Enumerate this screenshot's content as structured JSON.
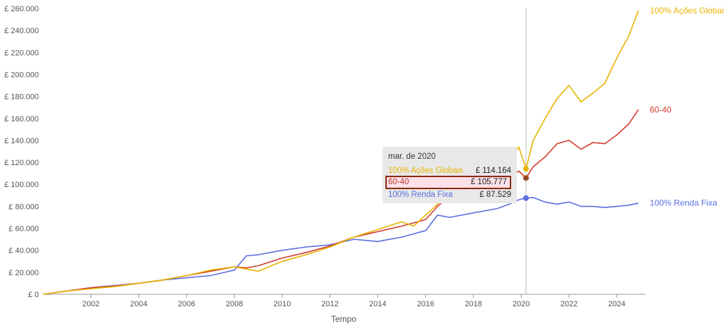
{
  "chart_data": {
    "type": "line",
    "title": "",
    "xlabel": "Tempo",
    "ylabel": "",
    "xlim": [
      2000.0,
      2025.2
    ],
    "ylim": [
      0,
      260000
    ],
    "grid": false,
    "x_ticks": [
      "2002",
      "2004",
      "2006",
      "2008",
      "2010",
      "2012",
      "2014",
      "2016",
      "2018",
      "2020",
      "2022",
      "2024"
    ],
    "y_ticks": [
      "£ 0",
      "£ 20.000",
      "£ 40.000",
      "£ 60.000",
      "£ 80.000",
      "£ 100.000",
      "£ 120.000",
      "£ 140.000",
      "£ 160.000",
      "£ 180.000",
      "£ 200.000",
      "£ 220.000",
      "£ 240.000",
      "£ 260.000"
    ],
    "series": [
      {
        "name": "100% Ações Globais",
        "color": "#e8b400",
        "x": [
          2000.0,
          2001.0,
          2002.0,
          2003.0,
          2004.0,
          2005.0,
          2006.0,
          2007.0,
          2008.0,
          2008.5,
          2009.0,
          2010.0,
          2011.0,
          2012.0,
          2013.0,
          2014.0,
          2015.0,
          2015.5,
          2016.0,
          2016.5,
          2017.0,
          2018.0,
          2018.5,
          2019.0,
          2019.5,
          2019.9,
          2020.2,
          2020.5,
          2021.0,
          2021.5,
          2022.0,
          2022.5,
          2023.0,
          2023.5,
          2024.0,
          2024.5,
          2024.9
        ],
        "y": [
          0,
          3000,
          5000,
          7000,
          10000,
          13000,
          17000,
          22000,
          25000,
          23000,
          21000,
          30000,
          36000,
          43000,
          52000,
          59000,
          66000,
          62000,
          72000,
          82000,
          98000,
          118000,
          113000,
          125000,
          122000,
          134000,
          114164,
          140000,
          160000,
          178000,
          190000,
          175000,
          183000,
          192000,
          215000,
          235000,
          258000
        ]
      },
      {
        "name": "60-40",
        "color": "#d13b2e",
        "x": [
          2000.0,
          2001.0,
          2002.0,
          2003.0,
          2004.0,
          2005.0,
          2006.0,
          2007.0,
          2008.0,
          2008.5,
          2009.0,
          2010.0,
          2011.0,
          2012.0,
          2013.0,
          2014.0,
          2015.0,
          2016.0,
          2016.5,
          2017.0,
          2018.0,
          2019.0,
          2019.5,
          2019.9,
          2020.2,
          2020.5,
          2021.0,
          2021.5,
          2022.0,
          2022.5,
          2023.0,
          2023.5,
          2024.0,
          2024.5,
          2024.9
        ],
        "y": [
          0,
          3000,
          6000,
          7500,
          10000,
          13000,
          17000,
          21000,
          25000,
          24000,
          26000,
          33000,
          38000,
          44000,
          52000,
          57000,
          62000,
          68000,
          80000,
          90000,
          100000,
          106000,
          108000,
          112000,
          105777,
          116000,
          125000,
          137000,
          140000,
          132000,
          138000,
          137000,
          145000,
          155000,
          168000
        ]
      },
      {
        "name": "100% Renda Fixa",
        "color": "#5a6fe0",
        "x": [
          2000.0,
          2001.0,
          2002.0,
          2003.0,
          2004.0,
          2005.0,
          2006.0,
          2007.0,
          2008.0,
          2008.5,
          2009.0,
          2010.0,
          2011.0,
          2012.0,
          2013.0,
          2014.0,
          2015.0,
          2016.0,
          2016.5,
          2017.0,
          2018.0,
          2019.0,
          2019.5,
          2019.9,
          2020.2,
          2020.5,
          2021.0,
          2021.5,
          2022.0,
          2022.5,
          2023.0,
          2023.5,
          2024.0,
          2024.5,
          2024.9
        ],
        "y": [
          0,
          3000,
          6000,
          8000,
          10000,
          13000,
          15000,
          17000,
          22000,
          35000,
          36000,
          40000,
          43000,
          45000,
          50000,
          48000,
          52000,
          58000,
          72000,
          70000,
          74000,
          78000,
          82000,
          86000,
          87529,
          88000,
          84000,
          82000,
          84000,
          80000,
          80000,
          79000,
          80000,
          81000,
          83000
        ]
      }
    ],
    "hover": {
      "x": 2020.2,
      "title": "mar. de 2020",
      "rows": [
        {
          "name": "100% Ações Globais",
          "value": "£ 114.164",
          "color": "#e8b400"
        },
        {
          "name": "60-40",
          "value": "£ 105.777",
          "color": "#c0392b"
        },
        {
          "name": "100% Renda Fixa",
          "value": "£ 87.529",
          "color": "#5a6fe0"
        }
      ]
    }
  }
}
